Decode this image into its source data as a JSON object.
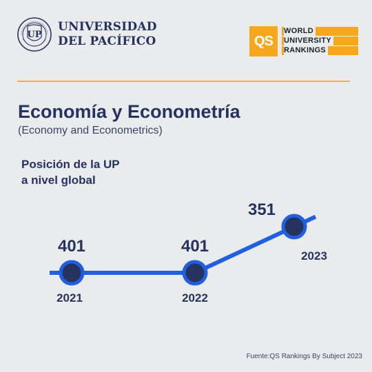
{
  "branding": {
    "university_line1": "UNIVERSIDAD",
    "university_line2": "DEL PACÍFICO",
    "qs_mark": "QS",
    "qs_line1": "WORLD",
    "qs_line2": "UNIVERSITY",
    "qs_line3": "RANKINGS",
    "accent_color": "#f5a81c",
    "navy_color": "#26335f",
    "line_color": "#1f5fe0"
  },
  "header": {
    "title": "Economía y Econometría",
    "subtitle": "(Economy and Econometrics)"
  },
  "metric_label": {
    "line1": "Posición de la UP",
    "line2": "a nivel global"
  },
  "chart_data": {
    "type": "line",
    "x": [
      "2021",
      "2022",
      "2023"
    ],
    "series": [
      {
        "values": [
          401,
          401,
          351
        ]
      }
    ],
    "value_labels": [
      "401",
      "401",
      "351"
    ],
    "axis_inverted": true,
    "grid": false
  },
  "footer": {
    "source": "Fuente:QS Rankings By Subject 2023"
  }
}
